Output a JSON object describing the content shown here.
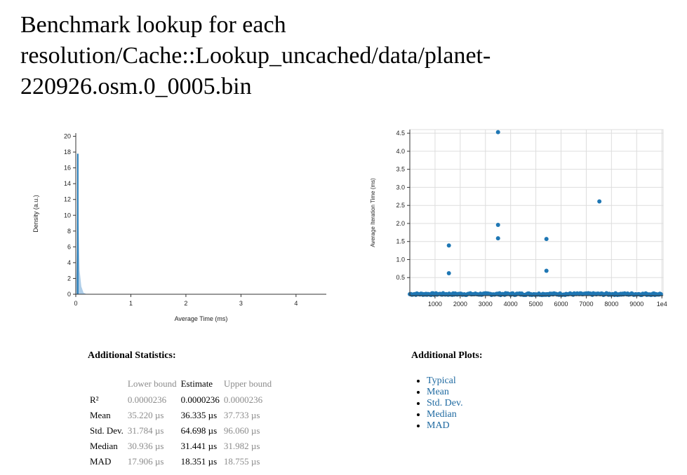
{
  "page": {
    "title": "Benchmark lookup for each resolution/Cache::Lookup_uncached/data/planet-220926.osm.0_0005.bin"
  },
  "colors": {
    "accent": "#1f77b4",
    "fill": "#aecde8",
    "grid": "#dddddd"
  },
  "chart_data": [
    {
      "type": "area",
      "xlabel": "Average Time (ms)",
      "ylabel": "Density (a.u.)",
      "xlim": [
        0,
        4.55
      ],
      "ylim": [
        0,
        20.4
      ],
      "x_ticks": [
        0,
        1,
        2,
        3,
        4
      ],
      "y_ticks": [
        0,
        2,
        4,
        6,
        8,
        10,
        12,
        14,
        16,
        18,
        20
      ],
      "grid": false,
      "series": [
        {
          "x": [
            0.0,
            0.02,
            0.032,
            0.036,
            0.04,
            0.05,
            0.07,
            0.1,
            0.14,
            0.2
          ],
          "values": [
            0.0,
            6.0,
            16.5,
            17.8,
            16.0,
            9.0,
            3.0,
            1.0,
            0.2,
            0.0
          ]
        }
      ],
      "markers": [
        {
          "type": "vertical-line",
          "x": 0.036,
          "y": 17.8
        }
      ]
    },
    {
      "type": "scatter",
      "xlabel": "",
      "ylabel": "Average Iteration Time (ms)",
      "xlim": [
        0,
        10050
      ],
      "ylim": [
        0,
        4.6
      ],
      "x_ticks": [
        1000,
        2000,
        3000,
        4000,
        5000,
        6000,
        7000,
        8000,
        9000,
        10000
      ],
      "x_tick_labels": [
        "1000",
        "2000",
        "3000",
        "4000",
        "5000",
        "6000",
        "7000",
        "8000",
        "9000",
        "1e4"
      ],
      "y_ticks": [
        0.5,
        1.0,
        1.5,
        2.0,
        2.5,
        3.0,
        3.5,
        4.0,
        4.5
      ],
      "y_tick_labels": [
        "0.5",
        "1.0",
        "1.5",
        "2.0",
        "2.5",
        "3.0",
        "3.5",
        "4.0",
        "4.5"
      ],
      "grid": true,
      "outliers": {
        "x": [
          1550,
          1550,
          3500,
          3500,
          3500,
          5420,
          5420,
          7520
        ],
        "y": [
          0.62,
          1.39,
          4.53,
          1.96,
          1.59,
          1.57,
          0.69,
          2.61
        ]
      },
      "baseline": {
        "x_start": 1,
        "x_end": 10000,
        "y_typical": 0.035,
        "y_spread": 0.05
      }
    }
  ],
  "stats": {
    "title": "Additional Statistics:",
    "headers": [
      "",
      "Lower bound",
      "Estimate",
      "Upper bound"
    ],
    "rows": [
      {
        "label": "R²",
        "lower": "0.0000236",
        "estimate": "0.0000236",
        "upper": "0.0000236"
      },
      {
        "label": "Mean",
        "lower": "35.220 µs",
        "estimate": "36.335 µs",
        "upper": "37.733 µs"
      },
      {
        "label": "Std. Dev.",
        "lower": "31.784 µs",
        "estimate": "64.698 µs",
        "upper": "96.060 µs"
      },
      {
        "label": "Median",
        "lower": "30.936 µs",
        "estimate": "31.441 µs",
        "upper": "31.982 µs"
      },
      {
        "label": "MAD",
        "lower": "17.906 µs",
        "estimate": "18.351 µs",
        "upper": "18.755 µs"
      }
    ]
  },
  "plots": {
    "title": "Additional Plots:",
    "links": [
      "Typical",
      "Mean",
      "Std. Dev.",
      "Median",
      "MAD"
    ]
  }
}
